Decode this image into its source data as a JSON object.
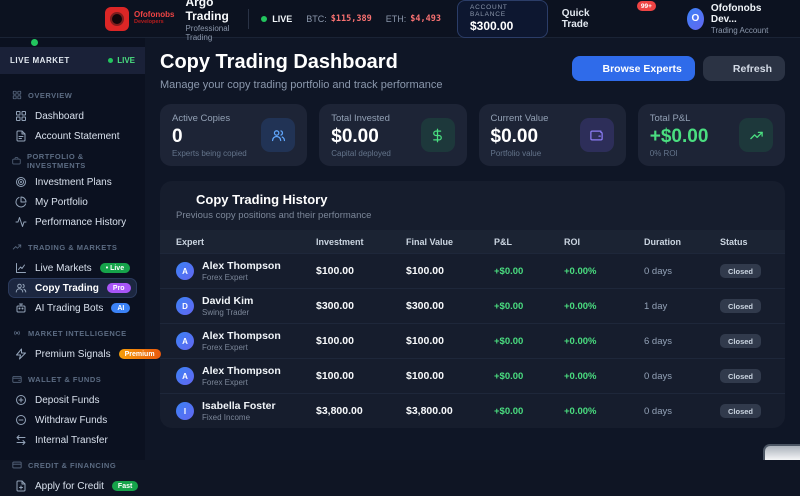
{
  "header": {
    "logo_line1": "Ofofonobs",
    "logo_line2": "Developers",
    "app_name": "Argo Trading",
    "app_tagline": "Professional Trading",
    "live_label": "LIVE",
    "tickers": [
      {
        "symbol": "BTC:",
        "price": "$115,389"
      },
      {
        "symbol": "ETH:",
        "price": "$4,493"
      }
    ],
    "balance_label": "ACCOUNT BALANCE",
    "balance_value": "$300.00",
    "quick_trade_label": "Quick Trade",
    "notification_count": "99+",
    "user_initial": "O",
    "user_name": "Ofofonobs Dev...",
    "user_role": "Trading Account"
  },
  "sidebar": {
    "market_bar": {
      "label": "LIVE MARKET",
      "status": "LIVE"
    },
    "sections": [
      {
        "label": "OVERVIEW",
        "icon": "grid",
        "items": [
          {
            "label": "Dashboard",
            "icon": "grid"
          },
          {
            "label": "Account Statement",
            "icon": "file-text"
          }
        ]
      },
      {
        "label": "PORTFOLIO & INVESTMENTS",
        "icon": "briefcase",
        "items": [
          {
            "label": "Investment Plans",
            "icon": "target"
          },
          {
            "label": "My Portfolio",
            "icon": "pie"
          },
          {
            "label": "Performance History",
            "icon": "activity"
          }
        ]
      },
      {
        "label": "TRADING & MARKETS",
        "icon": "trending",
        "items": [
          {
            "label": "Live Markets",
            "icon": "chart",
            "badge": "• Live",
            "badge_style": "green"
          },
          {
            "label": "Copy Trading",
            "icon": "users",
            "badge": "Pro",
            "badge_style": "purple",
            "active": true
          },
          {
            "label": "AI Trading Bots",
            "icon": "bot",
            "badge": "AI",
            "badge_style": "blue"
          }
        ]
      },
      {
        "label": "MARKET INTELLIGENCE",
        "icon": "signal",
        "items": [
          {
            "label": "Premium Signals",
            "icon": "zap",
            "badge": "Premium",
            "badge_style": "orange"
          }
        ]
      },
      {
        "label": "WALLET & FUNDS",
        "icon": "wallet",
        "items": [
          {
            "label": "Deposit Funds",
            "icon": "plus-circle"
          },
          {
            "label": "Withdraw Funds",
            "icon": "minus-circle"
          },
          {
            "label": "Internal Transfer",
            "icon": "arrows"
          }
        ]
      },
      {
        "label": "CREDIT & FINANCING",
        "icon": "credit-card",
        "items": [
          {
            "label": "Apply for Credit",
            "icon": "file-plus",
            "badge": "Fast",
            "badge_style": "green"
          }
        ]
      }
    ]
  },
  "page": {
    "title": "Copy Trading Dashboard",
    "subtitle": "Manage your copy trading portfolio and track performance",
    "browse_button": "Browse Experts",
    "refresh_button": "Refresh"
  },
  "stats": [
    {
      "label": "Active Copies",
      "value": "0",
      "sub": "Experts being copied",
      "icon": "users",
      "style": "blue",
      "value_color": "white"
    },
    {
      "label": "Total Invested",
      "value": "$0.00",
      "sub": "Capital deployed",
      "icon": "dollar",
      "style": "green",
      "value_color": "white"
    },
    {
      "label": "Current Value",
      "value": "$0.00",
      "sub": "Portfolio value",
      "icon": "wallet2",
      "style": "purple",
      "value_color": "white"
    },
    {
      "label": "Total P&L",
      "value": "+$0.00",
      "sub": "0% ROI",
      "icon": "trending",
      "style": "green",
      "value_color": "green"
    }
  ],
  "history": {
    "title": "Copy Trading History",
    "subtitle": "Previous copy positions and their performance",
    "columns": [
      "Expert",
      "Investment",
      "Final Value",
      "P&L",
      "ROI",
      "Duration",
      "Status"
    ],
    "rows": [
      {
        "initial": "A",
        "name": "Alex Thompson",
        "role": "Forex Expert",
        "investment": "$100.00",
        "final": "$100.00",
        "pl": "+$0.00",
        "roi": "+0.00%",
        "duration": "0 days",
        "status": "Closed"
      },
      {
        "initial": "D",
        "name": "David Kim",
        "role": "Swing Trader",
        "investment": "$300.00",
        "final": "$300.00",
        "pl": "+$0.00",
        "roi": "+0.00%",
        "duration": "1 day",
        "status": "Closed"
      },
      {
        "initial": "A",
        "name": "Alex Thompson",
        "role": "Forex Expert",
        "investment": "$100.00",
        "final": "$100.00",
        "pl": "+$0.00",
        "roi": "+0.00%",
        "duration": "6 days",
        "status": "Closed"
      },
      {
        "initial": "A",
        "name": "Alex Thompson",
        "role": "Forex Expert",
        "investment": "$100.00",
        "final": "$100.00",
        "pl": "+$0.00",
        "roi": "+0.00%",
        "duration": "0 days",
        "status": "Closed"
      },
      {
        "initial": "I",
        "name": "Isabella Foster",
        "role": "Fixed Income",
        "investment": "$3,800.00",
        "final": "$3,800.00",
        "pl": "+$0.00",
        "roi": "+0.00%",
        "duration": "0 days",
        "status": "Closed"
      }
    ]
  },
  "colors": {
    "accent_blue": "#2f6bea",
    "green": "#4ade80",
    "red": "#f87171",
    "purple": "#a855f7",
    "orange": "#f97316"
  }
}
